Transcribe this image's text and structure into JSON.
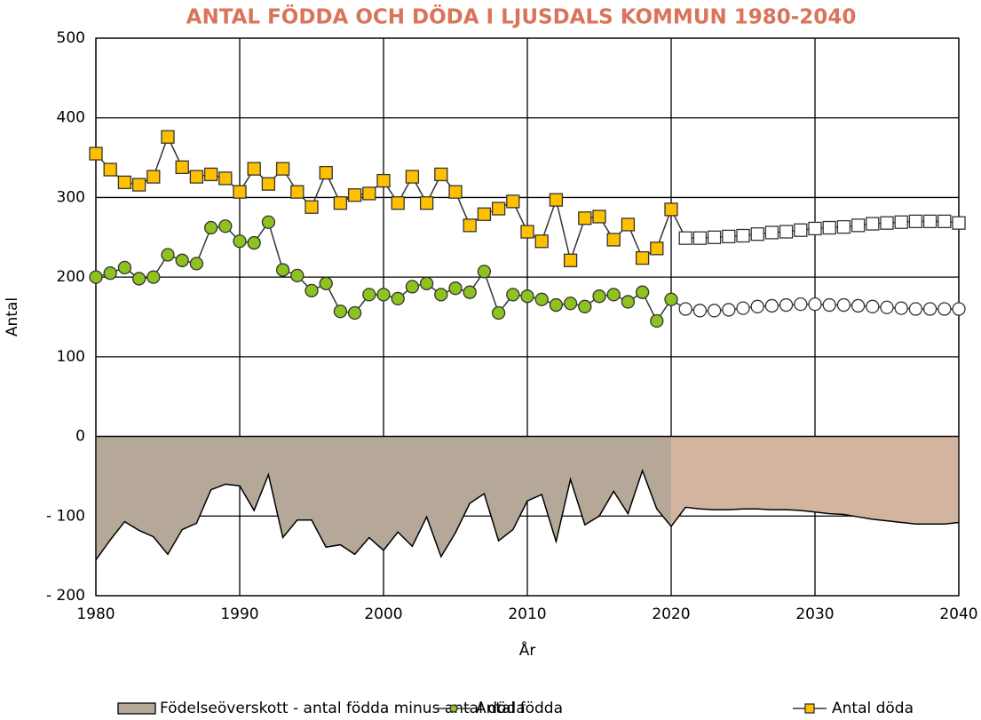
{
  "chart_data": {
    "type": "line",
    "title": "ANTAL FÖDDA OCH DÖDA I LJUSDALS KOMMUN 1980-2040",
    "x_label": "År",
    "y_label": "Antal",
    "xlim": [
      1980,
      2040
    ],
    "xticks": [
      1980,
      1990,
      2000,
      2010,
      2020,
      2030,
      2040
    ],
    "ylim": [
      -200,
      500
    ],
    "yticks": [
      {
        "value": -200,
        "label": "- 200"
      },
      {
        "value": -100,
        "label": "- 100"
      },
      0,
      100,
      200,
      300,
      400,
      500
    ],
    "grid": true,
    "legend": "bottom",
    "x": [
      1980,
      1981,
      1982,
      1983,
      1984,
      1985,
      1986,
      1987,
      1988,
      1989,
      1990,
      1991,
      1992,
      1993,
      1994,
      1995,
      1996,
      1997,
      1998,
      1999,
      2000,
      2001,
      2002,
      2003,
      2004,
      2005,
      2006,
      2007,
      2008,
      2009,
      2010,
      2011,
      2012,
      2013,
      2014,
      2015,
      2016,
      2017,
      2018,
      2019,
      2020,
      2021,
      2022,
      2023,
      2024,
      2025,
      2026,
      2027,
      2028,
      2029,
      2030,
      2031,
      2032,
      2033,
      2034,
      2035,
      2036,
      2037,
      2038,
      2039,
      2040
    ],
    "series": [
      {
        "name": "Födelseöverskott - antal födda minus antal döda",
        "type": "area",
        "color": "#b5a899",
        "projection_color": "#d3b59f",
        "projection_from": 2020,
        "values": [
          -155,
          -130,
          -107,
          -118,
          -126,
          -148,
          -117,
          -109,
          -67,
          -60,
          -62,
          -93,
          -48,
          -127,
          -105,
          -105,
          -139,
          -136,
          -148,
          -127,
          -143,
          -120,
          -138,
          -101,
          -151,
          -121,
          -84,
          -72,
          -131,
          -117,
          -81,
          -73,
          -132,
          -54,
          -111,
          -100,
          -69,
          -97,
          -43,
          -91,
          -113,
          -89,
          -91,
          -92,
          -92,
          -91,
          -91,
          -92,
          -92,
          -93,
          -95,
          -97,
          -98,
          -101,
          -104,
          -106,
          -108,
          -110,
          -110,
          -110,
          -108
        ]
      },
      {
        "name": "Antal födda",
        "type": "line",
        "marker": "circle",
        "color": "#8dc21f",
        "projection_color": "#ffffff",
        "projection_from": 2021,
        "values": [
          200,
          205,
          212,
          198,
          200,
          228,
          221,
          217,
          262,
          264,
          245,
          243,
          269,
          209,
          202,
          183,
          192,
          157,
          155,
          178,
          178,
          173,
          188,
          192,
          178,
          186,
          181,
          207,
          155,
          178,
          176,
          172,
          165,
          167,
          163,
          176,
          178,
          169,
          181,
          145,
          172,
          160,
          158,
          158,
          159,
          161,
          163,
          164,
          165,
          166,
          166,
          165,
          165,
          164,
          163,
          162,
          161,
          160,
          160,
          160,
          160
        ]
      },
      {
        "name": "Antal döda",
        "type": "line",
        "marker": "square",
        "color": "#ffc000",
        "projection_color": "#ffffff",
        "projection_from": 2021,
        "values": [
          355,
          335,
          319,
          316,
          326,
          376,
          338,
          326,
          329,
          324,
          307,
          336,
          317,
          336,
          307,
          288,
          331,
          293,
          303,
          305,
          321,
          293,
          326,
          293,
          329,
          307,
          265,
          279,
          286,
          295,
          257,
          245,
          297,
          221,
          274,
          276,
          247,
          266,
          224,
          236,
          285,
          249,
          249,
          250,
          251,
          252,
          254,
          256,
          257,
          259,
          261,
          262,
          263,
          265,
          267,
          268,
          269,
          270,
          270,
          270,
          268
        ]
      }
    ]
  }
}
